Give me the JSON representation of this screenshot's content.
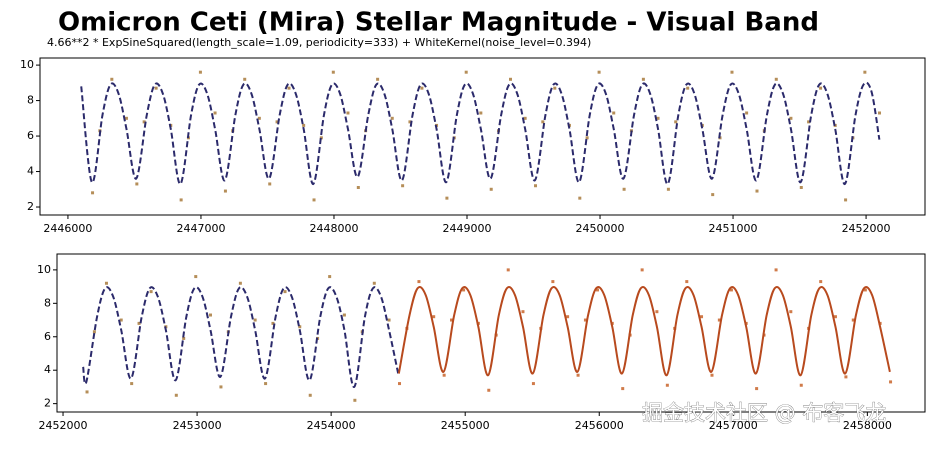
{
  "title": "Omicron Ceti (Mira) Stellar Magnitude - Visual Band",
  "subtitle": "4.66**2 * ExpSineSquared(length_scale=1.09, periodicity=333) + WhiteKernel(noise_level=0.394)",
  "watermark": "掘金技术社区 @ 布客飞龙",
  "chart_data": [
    {
      "type": "line",
      "xlim": [
        2445790,
        2452443
      ],
      "ylim": [
        1.55,
        10.4
      ],
      "xticks": [
        2446000,
        2447000,
        2448000,
        2449000,
        2450000,
        2451000,
        2452000
      ],
      "yticks": [
        2,
        4,
        6,
        8,
        10
      ],
      "series": [
        {
          "type": "scatter",
          "color": "#a87a3c",
          "x": [
            2446185,
            2446240,
            2446330,
            2446440,
            2446518,
            2446573,
            2446663,
            2446773,
            2446851,
            2446906,
            2446996,
            2447106,
            2447184,
            2447239,
            2447329,
            2447439,
            2447517,
            2447572,
            2447662,
            2447772,
            2447850,
            2447905,
            2447995,
            2448105,
            2448183,
            2448238,
            2448328,
            2448438,
            2448516,
            2448571,
            2448661,
            2448771,
            2448849,
            2448904,
            2448994,
            2449104,
            2449182,
            2449237,
            2449327,
            2449437,
            2449515,
            2449570,
            2449660,
            2449770,
            2449848,
            2449903,
            2449993,
            2450103,
            2450181,
            2450236,
            2450326,
            2450436,
            2450514,
            2450569,
            2450659,
            2450769,
            2450847,
            2450902,
            2450992,
            2451102,
            2451180,
            2451235,
            2451325,
            2451435,
            2451513,
            2451568,
            2451658,
            2451768,
            2451846,
            2451901,
            2451991,
            2452101
          ],
          "values": [
            2.8,
            6.3,
            9.2,
            7.0,
            3.3,
            6.8,
            8.7,
            6.6,
            2.4,
            5.9,
            9.6,
            7.3,
            2.9,
            6.3,
            9.2,
            7.0,
            3.3,
            6.8,
            8.7,
            6.6,
            2.4,
            5.9,
            9.6,
            7.3,
            3.1,
            6.3,
            9.2,
            7.0,
            3.2,
            6.8,
            8.7,
            6.6,
            2.5,
            5.9,
            9.6,
            7.3,
            3.0,
            6.3,
            9.2,
            7.0,
            3.2,
            6.8,
            8.7,
            6.6,
            2.5,
            5.9,
            9.6,
            7.3,
            3.0,
            6.3,
            9.2,
            7.0,
            3.0,
            6.8,
            8.7,
            6.6,
            2.7,
            5.9,
            9.6,
            7.3,
            2.9,
            6.3,
            9.2,
            7.0,
            3.1,
            6.8,
            8.7,
            6.6,
            2.4,
            5.9,
            9.6,
            7.3
          ]
        },
        {
          "type": "line",
          "color": "#2b2a6b",
          "dashed": true,
          "x": [
            2446100,
            2446180,
            2446260,
            2446320,
            2446380,
            2446440,
            2446513,
            2446593,
            2446653,
            2446713,
            2446773,
            2446846,
            2446926,
            2446986,
            2447046,
            2447106,
            2447179,
            2447259,
            2447319,
            2447379,
            2447439,
            2447512,
            2447592,
            2447652,
            2447712,
            2447772,
            2447845,
            2447925,
            2447985,
            2448045,
            2448105,
            2448178,
            2448258,
            2448318,
            2448378,
            2448438,
            2448511,
            2448591,
            2448651,
            2448711,
            2448771,
            2448844,
            2448924,
            2448984,
            2449044,
            2449104,
            2449177,
            2449257,
            2449317,
            2449377,
            2449437,
            2449510,
            2449590,
            2449650,
            2449710,
            2449770,
            2449843,
            2449923,
            2449983,
            2450043,
            2450103,
            2450176,
            2450256,
            2450316,
            2450376,
            2450436,
            2450509,
            2450589,
            2450649,
            2450709,
            2450769,
            2450842,
            2450922,
            2450982,
            2451042,
            2451102,
            2451175,
            2451255,
            2451315,
            2451375,
            2451435,
            2451508,
            2451588,
            2451648,
            2451708,
            2451768,
            2451841,
            2451921,
            2451981,
            2452041,
            2452100
          ],
          "values": [
            8.8,
            3.4,
            7.2,
            8.9,
            8.4,
            6.4,
            3.6,
            7.2,
            8.9,
            8.4,
            6.4,
            3.3,
            7.2,
            8.9,
            8.4,
            6.4,
            3.5,
            7.2,
            8.9,
            8.4,
            6.4,
            3.6,
            7.2,
            8.9,
            8.4,
            6.4,
            3.3,
            7.2,
            8.9,
            8.4,
            6.4,
            3.7,
            7.2,
            8.9,
            8.4,
            6.4,
            3.5,
            7.2,
            8.9,
            8.4,
            6.4,
            3.4,
            7.2,
            8.9,
            8.4,
            6.4,
            3.6,
            7.2,
            8.9,
            8.4,
            6.4,
            3.5,
            7.2,
            8.9,
            8.4,
            6.4,
            3.4,
            7.2,
            8.9,
            8.4,
            6.4,
            3.6,
            7.2,
            8.9,
            8.4,
            6.4,
            3.3,
            7.2,
            8.9,
            8.4,
            6.4,
            3.6,
            7.2,
            8.9,
            8.4,
            6.4,
            3.5,
            7.2,
            8.9,
            8.4,
            6.4,
            3.4,
            7.2,
            8.9,
            8.4,
            6.4,
            3.3,
            7.2,
            8.9,
            8.5,
            5.8
          ]
        }
      ]
    },
    {
      "type": "line",
      "xlim": [
        2451955,
        2458430
      ],
      "ylim": [
        1.5,
        10.95
      ],
      "xticks": [
        2452000,
        2453000,
        2454000,
        2455000,
        2456000,
        2457000,
        2458000
      ],
      "yticks": [
        2,
        4,
        6,
        8,
        10
      ],
      "series": [
        {
          "type": "scatter",
          "color": "#a87a3c",
          "x": [
            2452179,
            2452234,
            2452324,
            2452434,
            2452512,
            2452567,
            2452657,
            2452767,
            2452845,
            2452900,
            2452990,
            2453100,
            2453178,
            2453233,
            2453323,
            2453433,
            2453511,
            2453566,
            2453656,
            2453766,
            2453844,
            2453899,
            2453989,
            2454099,
            2454177,
            2454232,
            2454322,
            2454432
          ],
          "values": [
            2.7,
            6.3,
            9.2,
            7.0,
            3.2,
            6.8,
            8.7,
            6.6,
            2.5,
            5.9,
            9.6,
            7.3,
            3.0,
            6.3,
            9.2,
            7.0,
            3.2,
            6.8,
            8.7,
            6.6,
            2.5,
            5.9,
            9.6,
            7.3,
            2.2,
            6.3,
            9.2,
            7.0
          ]
        },
        {
          "type": "scatter",
          "color": "#c8642a",
          "x": [
            2454510,
            2454565,
            2454655,
            2454765,
            2454843,
            2454898,
            2454988,
            2455098,
            2455176,
            2455231,
            2455321,
            2455431,
            2455509,
            2455564,
            2455654,
            2455764,
            2455842,
            2455897,
            2455987,
            2456097,
            2456175,
            2456230,
            2456320,
            2456430,
            2456508,
            2456563,
            2456653,
            2456763,
            2456841,
            2456896,
            2456986,
            2457096,
            2457174,
            2457229,
            2457319,
            2457429,
            2457507,
            2457562,
            2457652,
            2457762,
            2457840,
            2457895,
            2457985,
            2458095,
            2458173
          ],
          "values": [
            3.2,
            6.5,
            9.3,
            7.2,
            3.7,
            7.0,
            8.8,
            6.8,
            2.8,
            6.1,
            10.0,
            7.5,
            3.2,
            6.5,
            9.3,
            7.2,
            3.7,
            7.0,
            8.8,
            6.8,
            2.9,
            6.1,
            10.0,
            7.5,
            3.1,
            6.5,
            9.3,
            7.2,
            3.7,
            7.0,
            8.8,
            6.8,
            2.9,
            6.1,
            10.0,
            7.5,
            3.1,
            6.5,
            9.3,
            7.2,
            3.6,
            7.0,
            8.8,
            6.8,
            3.3
          ]
        },
        {
          "type": "line",
          "color": "#2b2a6b",
          "dashed": true,
          "x": [
            2452150,
            2452174,
            2452254,
            2452314,
            2452374,
            2452434,
            2452507,
            2452587,
            2452647,
            2452707,
            2452767,
            2452840,
            2452920,
            2452980,
            2453040,
            2453100,
            2453173,
            2453253,
            2453313,
            2453373,
            2453433,
            2453506,
            2453586,
            2453646,
            2453706,
            2453766,
            2453839,
            2453919,
            2453979,
            2454039,
            2454099,
            2454172,
            2454252,
            2454312,
            2454372,
            2454432,
            2454500
          ],
          "values": [
            4.2,
            3.3,
            7.2,
            8.9,
            8.4,
            6.4,
            3.5,
            7.2,
            8.9,
            8.4,
            6.4,
            3.4,
            7.2,
            8.9,
            8.4,
            6.4,
            3.6,
            7.2,
            8.9,
            8.4,
            6.4,
            3.5,
            7.2,
            8.9,
            8.4,
            6.4,
            3.4,
            7.2,
            8.9,
            8.4,
            6.4,
            3.0,
            7.2,
            8.9,
            8.4,
            6.4,
            3.8
          ]
        },
        {
          "type": "line",
          "color": "#b84a1e",
          "dashed": false,
          "x": [
            2454505,
            2454585,
            2454645,
            2454705,
            2454765,
            2454838,
            2454918,
            2454978,
            2455038,
            2455098,
            2455171,
            2455251,
            2455311,
            2455371,
            2455431,
            2455504,
            2455584,
            2455644,
            2455704,
            2455764,
            2455837,
            2455917,
            2455977,
            2456037,
            2456097,
            2456170,
            2456250,
            2456310,
            2456370,
            2456430,
            2456503,
            2456583,
            2456643,
            2456703,
            2456763,
            2456836,
            2456916,
            2456976,
            2457036,
            2457096,
            2457169,
            2457249,
            2457309,
            2457369,
            2457429,
            2457502,
            2457582,
            2457642,
            2457702,
            2457762,
            2457835,
            2457915,
            2457975,
            2458035,
            2458095,
            2458168
          ],
          "values": [
            3.8,
            7.3,
            8.9,
            8.5,
            6.6,
            3.9,
            7.3,
            8.9,
            8.5,
            6.6,
            3.7,
            7.3,
            8.9,
            8.5,
            6.6,
            3.8,
            7.3,
            8.9,
            8.5,
            6.6,
            3.9,
            7.3,
            8.9,
            8.5,
            6.6,
            3.8,
            7.3,
            8.9,
            8.5,
            6.6,
            3.7,
            7.3,
            8.9,
            8.5,
            6.6,
            3.9,
            7.3,
            8.9,
            8.5,
            6.6,
            3.8,
            7.3,
            8.9,
            8.5,
            6.6,
            3.7,
            7.3,
            8.9,
            8.5,
            6.6,
            3.8,
            7.3,
            8.9,
            8.5,
            6.6,
            3.9
          ]
        }
      ]
    }
  ]
}
